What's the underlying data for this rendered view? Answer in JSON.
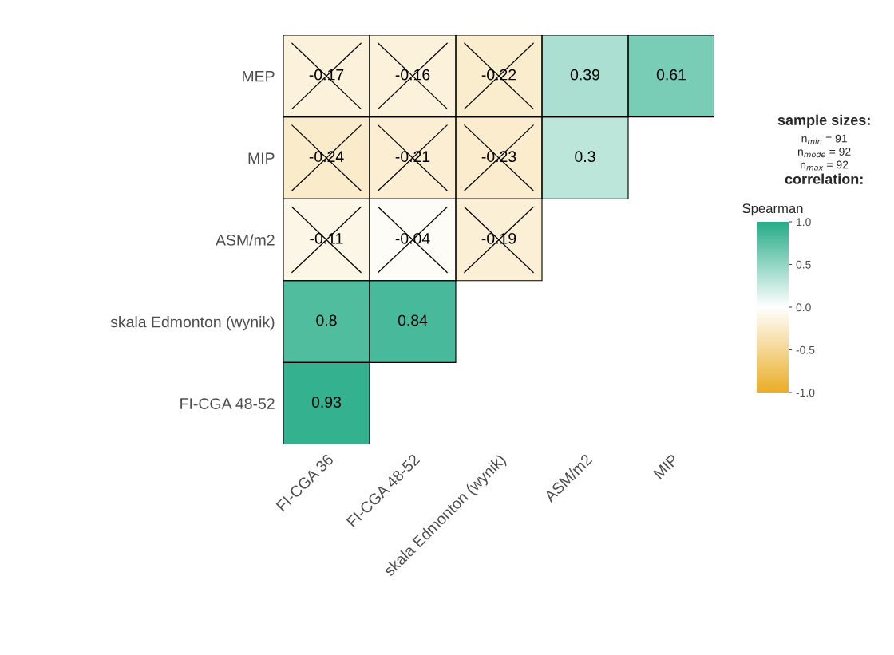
{
  "chart_data": {
    "type": "heatmap",
    "categories": [
      "FI-CGA 36",
      "FI-CGA 48-52",
      "skala Edmonton (wynik)",
      "ASM/m2",
      "MIP"
    ],
    "y_categories": [
      "MEP",
      "MIP",
      "ASM/m2",
      "skala Edmonton (wynik)",
      "FI-CGA 48-52"
    ],
    "cells": [
      [
        -0.17,
        -0.16,
        -0.22,
        0.39,
        0.61
      ],
      [
        -0.24,
        -0.21,
        -0.23,
        0.3,
        null
      ],
      [
        -0.11,
        -0.04,
        -0.19,
        null,
        null
      ],
      [
        0.8,
        0.84,
        null,
        null,
        null
      ],
      [
        0.93,
        null,
        null,
        null,
        null
      ]
    ],
    "data_labels": true,
    "clim": [
      -1,
      1
    ],
    "cticks": [
      {
        "value": 1,
        "label": "1.0"
      },
      {
        "value": 0.5,
        "label": "0.5"
      },
      {
        "value": 0,
        "label": "0.0"
      },
      {
        "value": -0.5,
        "label": "-0.5"
      },
      {
        "value": -1,
        "label": "-1.0"
      }
    ],
    "clabel": "Spearman",
    "annotations": [
      "sample sizes:",
      "n$_{min}$ = 91",
      "n$_{mode}$ = 92",
      "n$_{max}$ = 92",
      "correlation:"
    ],
    "grid": false
  }
}
